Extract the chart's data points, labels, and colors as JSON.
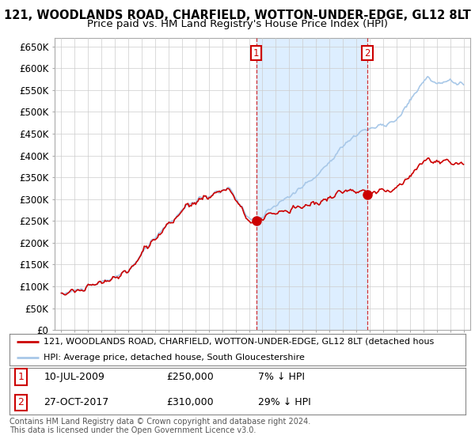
{
  "title": "121, WOODLANDS ROAD, CHARFIELD, WOTTON-UNDER-EDGE, GL12 8LT",
  "subtitle": "Price paid vs. HM Land Registry's House Price Index (HPI)",
  "yticks": [
    0,
    50000,
    100000,
    150000,
    200000,
    250000,
    300000,
    350000,
    400000,
    450000,
    500000,
    550000,
    600000,
    650000
  ],
  "ylim": [
    0,
    670000
  ],
  "hpi_color": "#a8c8e8",
  "price_color": "#cc0000",
  "shade_color": "#ddeeff",
  "sale1_date": 2009.53,
  "sale1_price": 250000,
  "sale2_date": 2017.82,
  "sale2_price": 310000,
  "legend_line1": "121, WOODLANDS ROAD, CHARFIELD, WOTTON-UNDER-EDGE, GL12 8LT (detached hous",
  "legend_line2": "HPI: Average price, detached house, South Gloucestershire",
  "footer": "Contains HM Land Registry data © Crown copyright and database right 2024.\nThis data is licensed under the Open Government Licence v3.0.",
  "bg_color": "#ffffff",
  "grid_color": "#cccccc",
  "title_fontsize": 10.5,
  "subtitle_fontsize": 9.5,
  "tick_fontsize": 8.5
}
